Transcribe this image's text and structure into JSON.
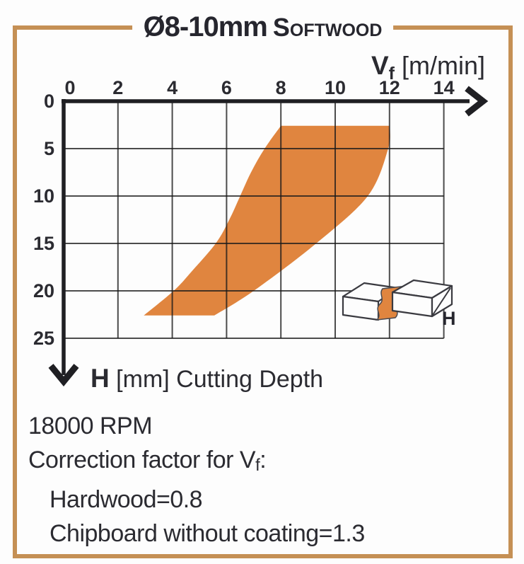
{
  "card": {
    "title_diameter": "Ø8-10mm",
    "title_material": "Softwood"
  },
  "chart_data": {
    "type": "area",
    "title": "Ø8-10mm Softwood feed-rate chart",
    "x_axis": {
      "label_main": "V",
      "label_sub": "f",
      "label_unit": " [m/min]",
      "ticks": [
        0,
        2,
        4,
        6,
        8,
        10,
        12,
        14
      ],
      "range": [
        0,
        14
      ]
    },
    "y_axis": {
      "label_main": "H",
      "label_unit": " [mm] Cutting Depth",
      "ticks": [
        0,
        5,
        10,
        15,
        20,
        25
      ],
      "range": [
        0,
        25
      ],
      "direction": "down"
    },
    "grid": true,
    "band": {
      "description": "recommended operating band (feed rate vs cutting depth)",
      "color": "#e0853f",
      "left_boundary": [
        [
          8,
          2.6
        ],
        [
          7.4,
          5
        ],
        [
          6.9,
          7.5
        ],
        [
          6.5,
          10
        ],
        [
          6.1,
          12.5
        ],
        [
          5.6,
          15
        ],
        [
          4.7,
          18
        ],
        [
          4.05,
          20
        ],
        [
          2.95,
          22.6
        ]
      ],
      "right_boundary": [
        [
          12,
          2.6
        ],
        [
          11.95,
          5
        ],
        [
          11.2,
          10
        ],
        [
          9.3,
          15
        ],
        [
          7.0,
          20
        ],
        [
          5.55,
          22.6
        ]
      ],
      "top_edge_y": 2.6,
      "bottom_edge_y": 22.6
    },
    "icon_label": "H"
  },
  "notes": {
    "rpm": "18000 RPM",
    "correction_prefix": "Correction factor for V",
    "correction_sub": "f",
    "correction_suffix": ":",
    "factors": [
      "Hardwood=0.8",
      "Chipboard without coating=1.3"
    ]
  },
  "colors": {
    "band": "#e0853f",
    "border": "#c59055",
    "text": "#2b2b31",
    "grid": "#1a1a1a"
  }
}
